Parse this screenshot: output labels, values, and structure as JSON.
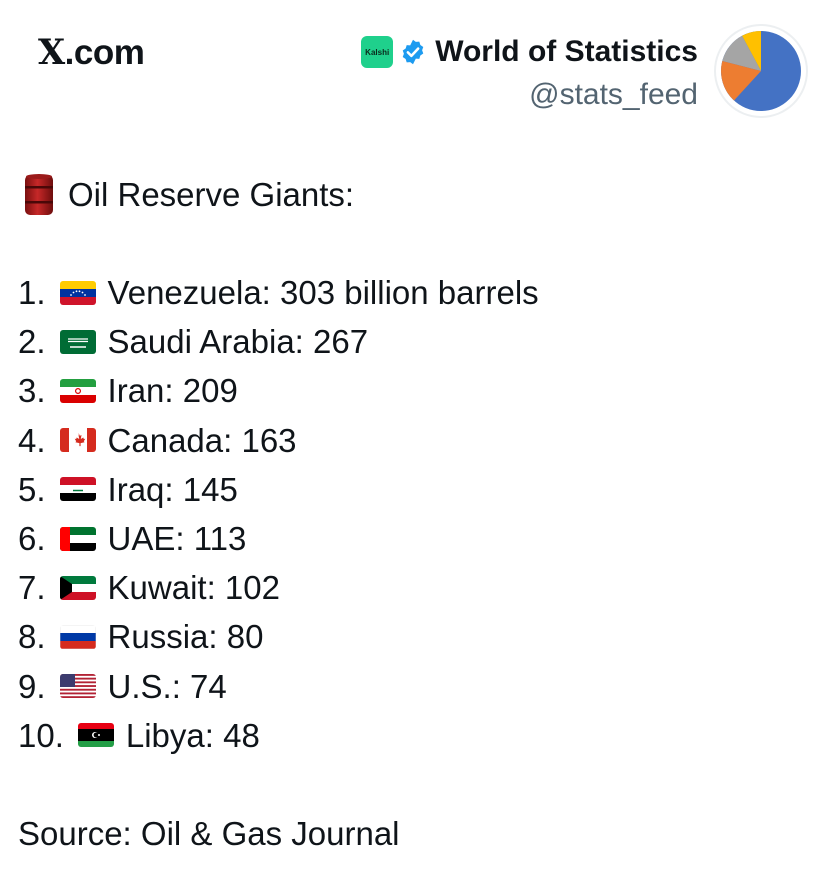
{
  "header": {
    "site": "X.com",
    "site_x": "X",
    "site_rest": ".com",
    "kalshi_badge": "Kalshi",
    "display_name": "World of Statistics",
    "handle": "@stats_feed",
    "avatar_icon": "pie-chart-icon",
    "avatar_colors": [
      "#4472c4",
      "#ed7d31",
      "#a5a5a5",
      "#ffc000"
    ]
  },
  "post": {
    "heading_icon": "oil-drum-icon",
    "heading": "Oil Reserve Giants:",
    "items": [
      {
        "rank": "1.",
        "flag": "venezuela-flag-icon",
        "text": "Venezuela: 303 billion barrels"
      },
      {
        "rank": "2.",
        "flag": "saudi-arabia-flag-icon",
        "text": "Saudi Arabia: 267"
      },
      {
        "rank": "3.",
        "flag": "iran-flag-icon",
        "text": "Iran: 209"
      },
      {
        "rank": "4.",
        "flag": "canada-flag-icon",
        "text": "Canada: 163"
      },
      {
        "rank": "5.",
        "flag": "iraq-flag-icon",
        "text": "Iraq: 145"
      },
      {
        "rank": "6.",
        "flag": "uae-flag-icon",
        "text": "UAE: 113"
      },
      {
        "rank": "7.",
        "flag": "kuwait-flag-icon",
        "text": "Kuwait: 102"
      },
      {
        "rank": "8.",
        "flag": "russia-flag-icon",
        "text": "Russia: 80"
      },
      {
        "rank": "9.",
        "flag": "us-flag-icon",
        "text": "U.S.: 74"
      },
      {
        "rank": "10.",
        "flag": "libya-flag-icon",
        "text": "Libya: 48"
      }
    ],
    "source": "Source: Oil & Gas Journal"
  }
}
